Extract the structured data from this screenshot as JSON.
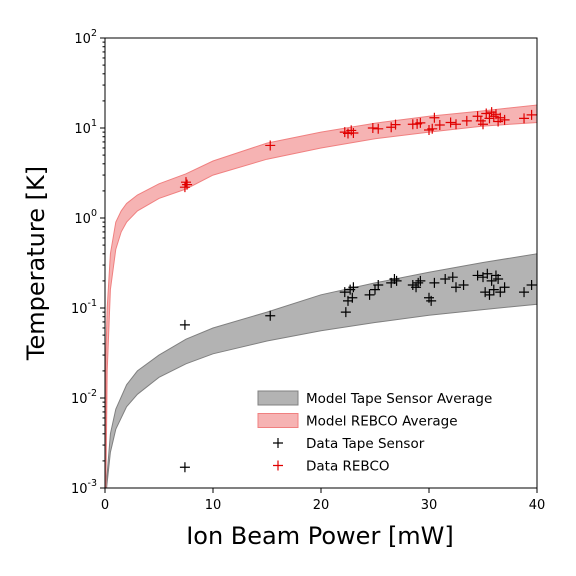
{
  "chart_data": {
    "type": "scatter",
    "xlabel": "Ion Beam Power [mW]",
    "ylabel": "Temperature [K]",
    "xlim": [
      0,
      40
    ],
    "ylim": [
      0.001,
      100
    ],
    "yscale": "log",
    "grid": false,
    "legend_position": "bottom-right",
    "x_ticks": [
      "0",
      "10",
      "20",
      "30",
      "40"
    ],
    "y_ticks": [
      {
        "base": "10",
        "exp": "-3"
      },
      {
        "base": "10",
        "exp": "-2"
      },
      {
        "base": "10",
        "exp": "-1"
      },
      {
        "base": "10",
        "exp": "0"
      },
      {
        "base": "10",
        "exp": "1"
      },
      {
        "base": "10",
        "exp": "2"
      }
    ],
    "bands": [
      {
        "name": "Model Tape Sensor Average",
        "color": "#808080",
        "x": [
          0.15,
          0.5,
          1,
          2,
          3,
          5,
          7.5,
          10,
          15,
          20,
          25,
          30,
          35,
          40
        ],
        "lower": [
          0.001,
          0.0025,
          0.0045,
          0.008,
          0.011,
          0.017,
          0.024,
          0.031,
          0.043,
          0.056,
          0.069,
          0.083,
          0.096,
          0.11
        ],
        "upper": [
          0.0012,
          0.004,
          0.0075,
          0.014,
          0.02,
          0.03,
          0.045,
          0.06,
          0.09,
          0.14,
          0.19,
          0.25,
          0.32,
          0.4
        ]
      },
      {
        "name": "Model REBCO Average",
        "color": "#f08080",
        "x": [
          0.08,
          0.2,
          0.5,
          1,
          1.5,
          2,
          3,
          5,
          7.5,
          10,
          15,
          20,
          25,
          30,
          35,
          40
        ],
        "lower": [
          0.001,
          0.02,
          0.16,
          0.45,
          0.7,
          0.9,
          1.2,
          1.65,
          2.1,
          3.0,
          4.5,
          6.0,
          7.6,
          9.0,
          10.5,
          11.5
        ],
        "upper": [
          0.03,
          0.1,
          0.4,
          0.9,
          1.2,
          1.45,
          1.8,
          2.4,
          3.1,
          4.3,
          6.8,
          9.0,
          11.3,
          13.5,
          15.5,
          18.0
        ]
      }
    ],
    "series": [
      {
        "name": "Data Tape Sensor",
        "color": "#000000",
        "marker": "+",
        "points": [
          [
            7.4,
            0.0017
          ],
          [
            7.4,
            0.065
          ],
          [
            15.3,
            0.082
          ],
          [
            22.2,
            0.15
          ],
          [
            22.3,
            0.09
          ],
          [
            22.5,
            0.12
          ],
          [
            22.7,
            0.16
          ],
          [
            22.9,
            0.13
          ],
          [
            23.0,
            0.17
          ],
          [
            24.5,
            0.14
          ],
          [
            25.0,
            0.16
          ],
          [
            25.3,
            0.18
          ],
          [
            26.5,
            0.19
          ],
          [
            26.8,
            0.21
          ],
          [
            27.0,
            0.2
          ],
          [
            28.5,
            0.18
          ],
          [
            28.8,
            0.17
          ],
          [
            29.0,
            0.19
          ],
          [
            29.2,
            0.2
          ],
          [
            30.0,
            0.13
          ],
          [
            30.2,
            0.12
          ],
          [
            30.5,
            0.19
          ],
          [
            31.5,
            0.21
          ],
          [
            32.2,
            0.22
          ],
          [
            32.5,
            0.17
          ],
          [
            33.2,
            0.18
          ],
          [
            34.5,
            0.23
          ],
          [
            35.0,
            0.22
          ],
          [
            35.2,
            0.15
          ],
          [
            35.4,
            0.24
          ],
          [
            35.6,
            0.14
          ],
          [
            35.8,
            0.2
          ],
          [
            36.0,
            0.16
          ],
          [
            36.2,
            0.23
          ],
          [
            36.4,
            0.21
          ],
          [
            36.6,
            0.15
          ],
          [
            37.0,
            0.17
          ],
          [
            38.8,
            0.15
          ],
          [
            39.5,
            0.18
          ]
        ]
      },
      {
        "name": "Data REBCO",
        "color": "#e00000",
        "marker": "+",
        "points": [
          [
            7.4,
            2.2
          ],
          [
            7.5,
            2.5
          ],
          [
            7.6,
            2.35
          ],
          [
            15.3,
            6.4
          ],
          [
            22.2,
            9.0
          ],
          [
            22.5,
            8.7
          ],
          [
            22.8,
            9.4
          ],
          [
            23.0,
            8.8
          ],
          [
            24.8,
            10.0
          ],
          [
            25.3,
            9.8
          ],
          [
            26.5,
            10.2
          ],
          [
            26.9,
            10.9
          ],
          [
            28.5,
            11.0
          ],
          [
            28.9,
            11.1
          ],
          [
            29.2,
            11.4
          ],
          [
            30.0,
            9.5
          ],
          [
            30.3,
            9.8
          ],
          [
            30.5,
            13.0
          ],
          [
            31.0,
            10.8
          ],
          [
            32.0,
            11.5
          ],
          [
            32.5,
            11.0
          ],
          [
            33.5,
            12.0
          ],
          [
            34.5,
            13.5
          ],
          [
            34.8,
            12.0
          ],
          [
            35.0,
            11.0
          ],
          [
            35.3,
            14.5
          ],
          [
            35.6,
            12.8
          ],
          [
            35.8,
            15.0
          ],
          [
            36.0,
            13.5
          ],
          [
            36.2,
            14.2
          ],
          [
            36.4,
            11.8
          ],
          [
            36.6,
            13.0
          ],
          [
            37.0,
            12.3
          ],
          [
            38.8,
            12.8
          ],
          [
            39.5,
            14.0
          ]
        ]
      }
    ]
  }
}
